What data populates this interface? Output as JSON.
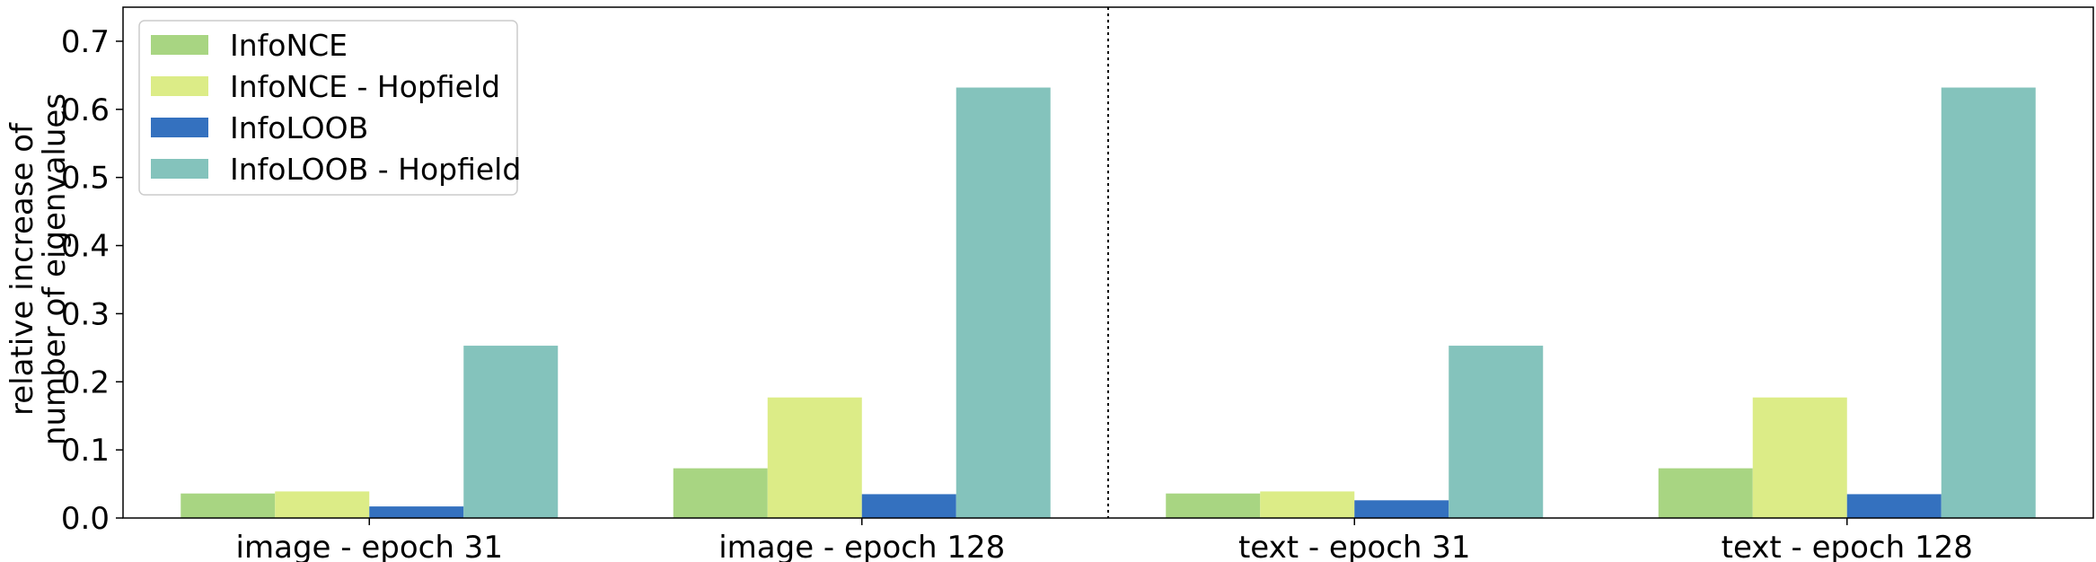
{
  "chart_data": {
    "type": "bar",
    "title": "",
    "xlabel": "",
    "ylabel_lines": [
      "relative increase of",
      "number of eigenvalues"
    ],
    "categories": [
      "image - epoch 31",
      "image - epoch 128",
      "text - epoch 31",
      "text - epoch 128"
    ],
    "series": [
      {
        "name": "InfoNCE",
        "color": "#a8d582",
        "values": [
          0.036,
          0.073,
          0.036,
          0.073
        ]
      },
      {
        "name": "InfoNCE - Hopfield",
        "color": "#dcec87",
        "values": [
          0.039,
          0.177,
          0.039,
          0.177
        ]
      },
      {
        "name": "InfoLOOB",
        "color": "#3471bf",
        "values": [
          0.017,
          0.035,
          0.026,
          0.035
        ]
      },
      {
        "name": "InfoLOOB - Hopfield",
        "color": "#84c3bc",
        "values": [
          0.253,
          0.632,
          0.253,
          0.632
        ]
      }
    ],
    "ylim": [
      0,
      0.75
    ],
    "yticks": [
      "0.0",
      "0.1",
      "0.2",
      "0.3",
      "0.4",
      "0.5",
      "0.6",
      "0.7"
    ],
    "legend_position": "top-left",
    "grid": false,
    "divider": "dotted vertical line between image and text groups"
  }
}
